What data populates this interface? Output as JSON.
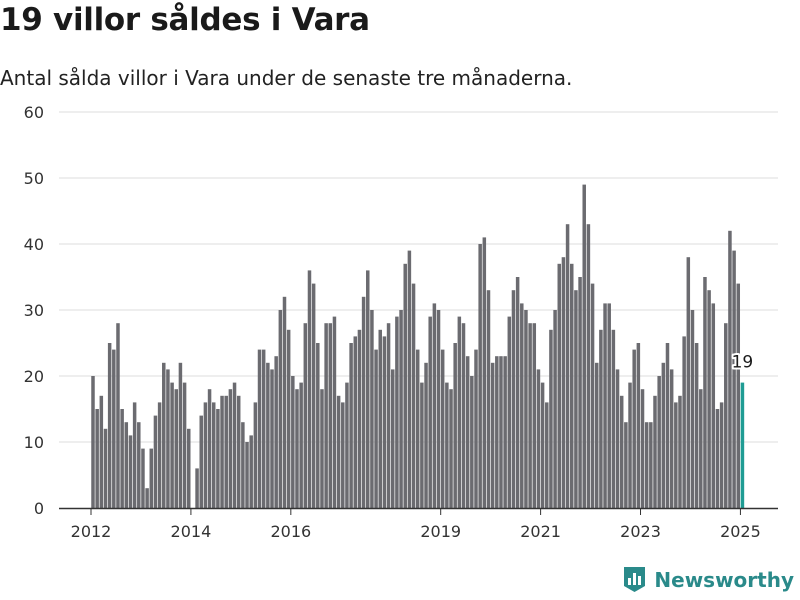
{
  "header": {
    "title": "19 villor såldes i Vara",
    "subtitle": "Antal sålda villor i Vara under de senaste tre månaderna."
  },
  "brand": {
    "name": "Newsworthy"
  },
  "colors": {
    "bar": "#6b6b70",
    "highlight": "#1f9c94",
    "grid": "#dddddd",
    "axis": "#333333",
    "brand": "#2a8a8a"
  },
  "chart_data": {
    "type": "bar",
    "title": "19 villor såldes i Vara",
    "subtitle": "Antal sålda villor i Vara under de senaste tre månaderna.",
    "xlabel": "",
    "ylabel": "",
    "ylim": [
      0,
      60
    ],
    "yticks": [
      0,
      10,
      20,
      30,
      40,
      50,
      60
    ],
    "xtick_labels": [
      "2012",
      "2014",
      "2016",
      "2019",
      "2021",
      "2023",
      "2025"
    ],
    "grid": true,
    "legend": "none",
    "start_period": "2012-01",
    "frequency": "monthly",
    "categories": [
      "2012-01",
      "2012-02",
      "2012-03",
      "2012-04",
      "2012-05",
      "2012-06",
      "2012-07",
      "2012-08",
      "2012-09",
      "2012-10",
      "2012-11",
      "2012-12",
      "2013-01",
      "2013-02",
      "2013-03",
      "2013-04",
      "2013-05",
      "2013-06",
      "2013-07",
      "2013-08",
      "2013-09",
      "2013-10",
      "2013-11",
      "2013-12",
      "2014-01",
      "2014-02",
      "2014-03",
      "2014-04",
      "2014-05",
      "2014-06",
      "2014-07",
      "2014-08",
      "2014-09",
      "2014-10",
      "2014-11",
      "2014-12",
      "2015-01",
      "2015-02",
      "2015-03",
      "2015-04",
      "2015-05",
      "2015-06",
      "2015-07",
      "2015-08",
      "2015-09",
      "2015-10",
      "2015-11",
      "2015-12",
      "2016-01",
      "2016-02",
      "2016-03",
      "2016-04",
      "2016-05",
      "2016-06",
      "2016-07",
      "2016-08",
      "2016-09",
      "2016-10",
      "2016-11",
      "2016-12",
      "2017-01",
      "2017-02",
      "2017-03",
      "2017-04",
      "2017-05",
      "2017-06",
      "2017-07",
      "2017-08",
      "2017-09",
      "2017-10",
      "2017-11",
      "2017-12",
      "2018-01",
      "2018-02",
      "2018-03",
      "2018-04",
      "2018-05",
      "2018-06",
      "2018-07",
      "2018-08",
      "2018-09",
      "2018-10",
      "2018-11",
      "2018-12",
      "2019-01",
      "2019-02",
      "2019-03",
      "2019-04",
      "2019-05",
      "2019-06",
      "2019-07",
      "2019-08",
      "2019-09",
      "2019-10",
      "2019-11",
      "2019-12",
      "2020-01",
      "2020-02",
      "2020-03",
      "2020-04",
      "2020-05",
      "2020-06",
      "2020-07",
      "2020-08",
      "2020-09",
      "2020-10",
      "2020-11",
      "2020-12",
      "2021-01",
      "2021-02",
      "2021-03",
      "2021-04",
      "2021-05",
      "2021-06",
      "2021-07",
      "2021-08",
      "2021-09",
      "2021-10",
      "2021-11",
      "2021-12",
      "2022-01",
      "2022-02",
      "2022-03",
      "2022-04",
      "2022-05",
      "2022-06",
      "2022-07",
      "2022-08",
      "2022-09",
      "2022-10",
      "2022-11",
      "2022-12",
      "2023-01",
      "2023-02",
      "2023-03",
      "2023-04",
      "2023-05",
      "2023-06",
      "2023-07",
      "2023-08",
      "2023-09",
      "2023-10",
      "2023-11",
      "2023-12",
      "2024-01",
      "2024-02",
      "2024-03",
      "2024-04",
      "2024-05",
      "2024-06",
      "2024-07",
      "2024-08",
      "2024-09",
      "2024-10",
      "2024-11",
      "2024-12",
      "2025-01"
    ],
    "values": [
      20,
      15,
      17,
      12,
      25,
      24,
      28,
      15,
      13,
      11,
      16,
      13,
      9,
      3,
      9,
      14,
      16,
      22,
      21,
      19,
      18,
      22,
      19,
      12,
      0,
      6,
      14,
      16,
      18,
      16,
      15,
      17,
      17,
      18,
      19,
      17,
      13,
      10,
      11,
      16,
      24,
      24,
      22,
      21,
      23,
      30,
      32,
      27,
      20,
      18,
      19,
      28,
      36,
      34,
      25,
      18,
      28,
      28,
      29,
      17,
      16,
      19,
      25,
      26,
      27,
      32,
      36,
      30,
      24,
      27,
      26,
      28,
      21,
      29,
      30,
      37,
      39,
      34,
      24,
      19,
      22,
      29,
      31,
      30,
      24,
      19,
      18,
      25,
      29,
      28,
      23,
      20,
      24,
      40,
      41,
      33,
      22,
      23,
      23,
      23,
      29,
      33,
      35,
      31,
      30,
      28,
      28,
      21,
      19,
      16,
      27,
      30,
      37,
      38,
      43,
      37,
      33,
      35,
      49,
      43,
      34,
      22,
      27,
      31,
      31,
      27,
      21,
      17,
      13,
      19,
      24,
      25,
      18,
      13,
      13,
      17,
      20,
      22,
      25,
      21,
      16,
      17,
      26,
      38,
      30,
      25,
      18,
      35,
      33,
      31,
      15,
      16,
      28,
      42,
      39,
      34,
      19
    ],
    "highlight_index": 156,
    "annotations": [
      {
        "category": "2025-01",
        "text": "19"
      }
    ]
  }
}
